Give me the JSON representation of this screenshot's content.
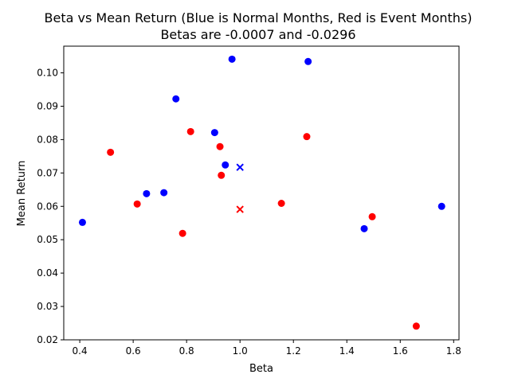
{
  "chart_data": {
    "type": "scatter",
    "title": "Beta vs Mean Return (Blue is Normal Months, Red is Event Months)",
    "subtitle": "Betas are -0.0007 and -0.0296",
    "xlabel": "Beta",
    "ylabel": "Mean Return",
    "xlim": [
      0.34,
      1.82
    ],
    "ylim": [
      0.02,
      0.108
    ],
    "xticks": [
      "0.4",
      "0.6",
      "0.8",
      "1.0",
      "1.2",
      "1.4",
      "1.6",
      "1.8"
    ],
    "yticks": [
      "0.02",
      "0.03",
      "0.04",
      "0.05",
      "0.06",
      "0.07",
      "0.08",
      "0.09",
      "0.10"
    ],
    "grid": false,
    "series": [
      {
        "color": "#0000ff",
        "points": [
          [
            0.41,
            0.0552
          ],
          [
            0.65,
            0.0638
          ],
          [
            0.715,
            0.0641
          ],
          [
            0.76,
            0.0922
          ],
          [
            0.905,
            0.0821
          ],
          [
            0.945,
            0.0724
          ],
          [
            0.97,
            0.1041
          ],
          [
            1.255,
            0.1034
          ],
          [
            1.465,
            0.0533
          ],
          [
            1.755,
            0.06
          ]
        ],
        "market_point": [
          1.0,
          0.0717
        ]
      },
      {
        "color": "#ff0000",
        "points": [
          [
            0.515,
            0.0762
          ],
          [
            0.615,
            0.0607
          ],
          [
            0.785,
            0.0519
          ],
          [
            0.815,
            0.0824
          ],
          [
            0.925,
            0.0779
          ],
          [
            0.93,
            0.0693
          ],
          [
            1.155,
            0.0609
          ],
          [
            1.25,
            0.0809
          ],
          [
            1.495,
            0.0569
          ],
          [
            1.66,
            0.0241
          ]
        ],
        "market_point": [
          1.0,
          0.0591
        ]
      }
    ]
  }
}
